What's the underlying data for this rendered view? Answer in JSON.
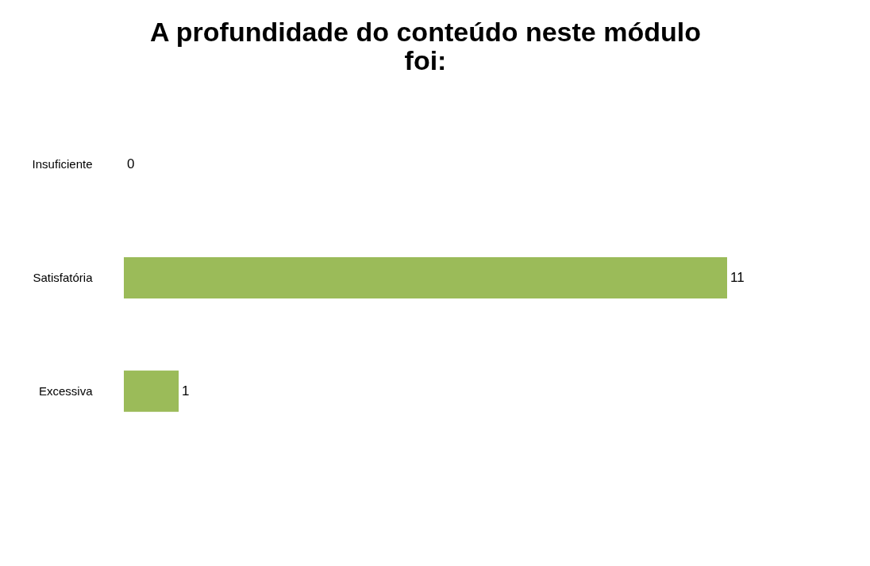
{
  "chart_data": {
    "type": "bar",
    "orientation": "horizontal",
    "title": "A profundidade do conteúdo neste módulo foi:",
    "categories": [
      "Insuficiente",
      "Satisfatória",
      "Excessiva"
    ],
    "values": [
      0,
      11,
      1
    ],
    "color": "#9bbb59",
    "data_labels": true,
    "grid": false
  }
}
